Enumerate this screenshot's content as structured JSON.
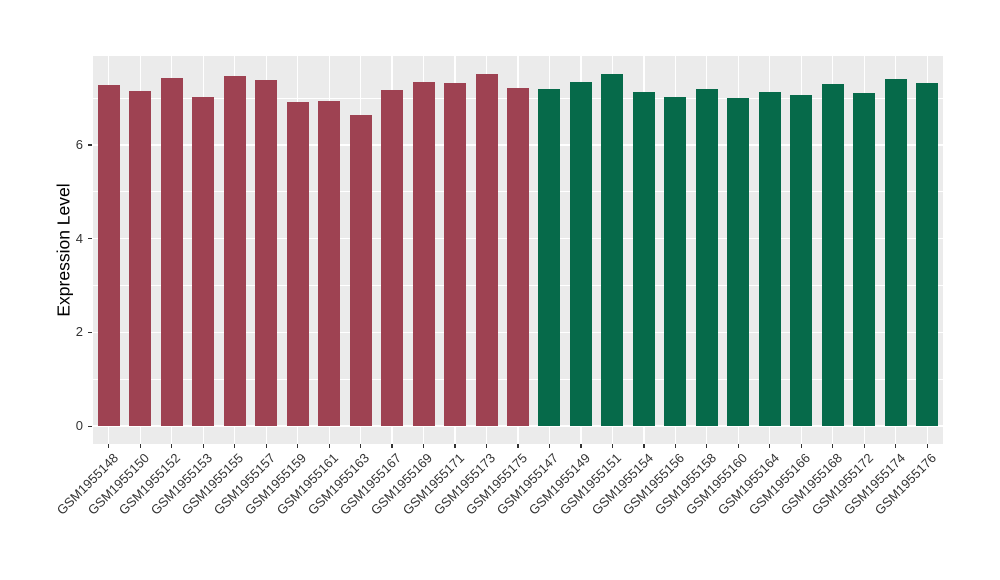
{
  "chart_data": {
    "type": "bar",
    "title": "",
    "xlabel": "",
    "ylabel": "Expression Level",
    "legend": "none",
    "grid": true,
    "panel_background": "#EBEBEB",
    "gridline_color": "#FFFFFF",
    "axis_text_color": "#333333",
    "y_axis": {
      "ticks": [
        0,
        2,
        4,
        6
      ],
      "minor_ticks": [
        1,
        3,
        5,
        7
      ],
      "display_min": -0.38,
      "display_max": 7.9
    },
    "series": [
      {
        "name": "maroon",
        "color": "#9E4252",
        "categories": [
          "GSM1955148",
          "GSM1955150",
          "GSM1955152",
          "GSM1955153",
          "GSM1955155",
          "GSM1955157",
          "GSM1955159",
          "GSM1955161",
          "GSM1955163",
          "GSM1955167",
          "GSM1955169",
          "GSM1955171",
          "GSM1955173",
          "GSM1955175"
        ],
        "values": [
          7.29,
          7.15,
          7.44,
          7.02,
          7.47,
          7.38,
          6.91,
          6.95,
          6.64,
          7.18,
          7.35,
          7.32,
          7.51,
          7.21
        ]
      },
      {
        "name": "green",
        "color": "#066A4A",
        "categories": [
          "GSM1955147",
          "GSM1955149",
          "GSM1955151",
          "GSM1955154",
          "GSM1955156",
          "GSM1955158",
          "GSM1955160",
          "GSM1955164",
          "GSM1955166",
          "GSM1955168",
          "GSM1955172",
          "GSM1955174",
          "GSM1955176"
        ],
        "values": [
          7.2,
          7.35,
          7.52,
          7.14,
          7.03,
          7.2,
          7.01,
          7.13,
          7.07,
          7.3,
          7.12,
          7.41,
          7.32
        ]
      }
    ]
  }
}
